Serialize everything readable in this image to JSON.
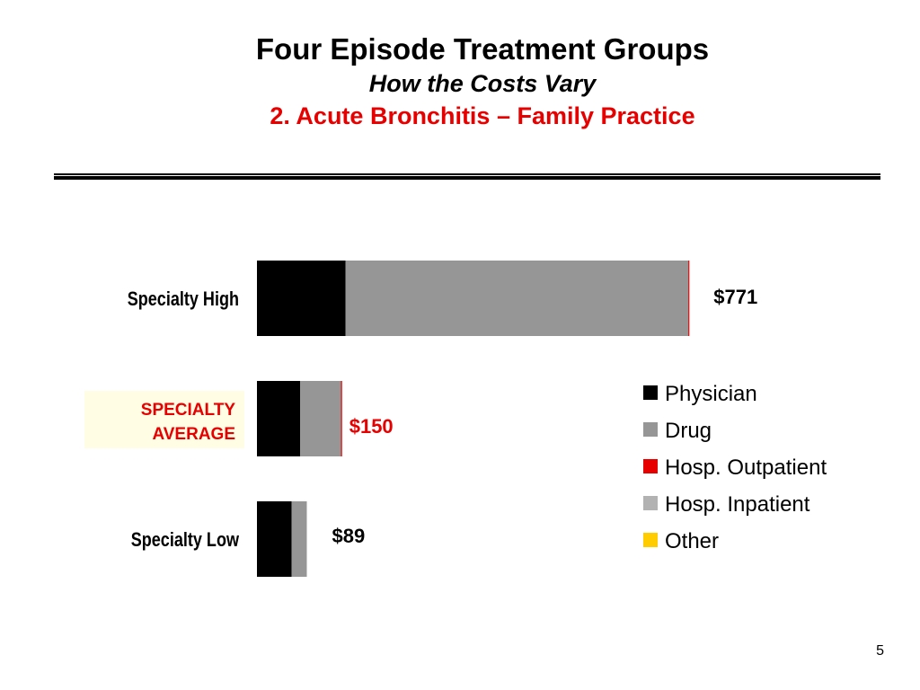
{
  "header": {
    "title": "Four Episode Treatment Groups",
    "subtitle": "How the Costs Vary",
    "subtitle2": "2. Acute Bronchitis – Family Practice"
  },
  "colors": {
    "highlight": "#e60000",
    "highlight_bg": "#fffde4"
  },
  "chart_data": {
    "type": "bar",
    "orientation": "horizontal",
    "stacked": true,
    "categories": [
      "Specialty High",
      "SPECIALTY AVERAGE",
      "Specialty Low"
    ],
    "highlighted_category": "SPECIALTY AVERAGE",
    "totals": [
      "$771",
      "$150",
      "$89"
    ],
    "series": [
      {
        "name": "Physician",
        "color": "#000000",
        "values": [
          158,
          77,
          62
        ]
      },
      {
        "name": "Drug",
        "color": "#969696",
        "values": [
          612,
          73,
          27
        ]
      },
      {
        "name": "Hosp. Outpatient",
        "color": "#e60000",
        "values": [
          1,
          1,
          0
        ]
      },
      {
        "name": "Hosp. Inpatient",
        "color": "#b2b2b2",
        "values": [
          0,
          0,
          0
        ]
      },
      {
        "name": "Other",
        "color": "#ffcc00",
        "values": [
          0,
          0,
          0
        ]
      }
    ],
    "xlim": [
      0,
      800
    ],
    "grid": false,
    "legend_position": "right"
  },
  "page_number": "5"
}
